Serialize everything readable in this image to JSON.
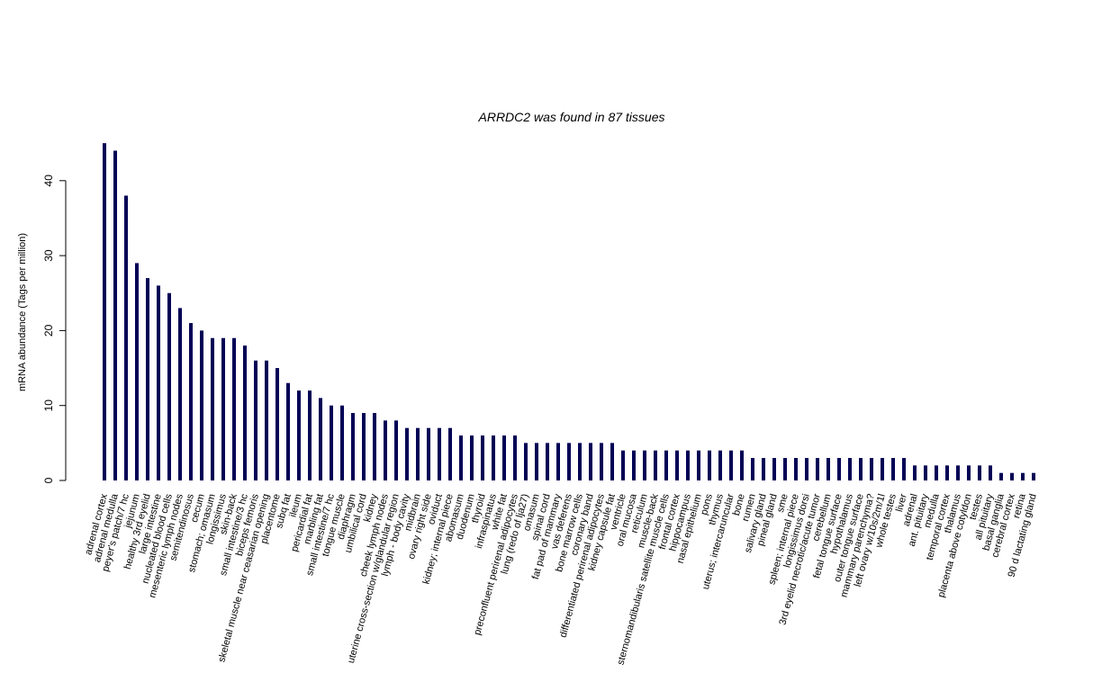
{
  "chart_data": {
    "type": "bar",
    "title": "ARRDC2  was found in  87  tissues",
    "ylabel": "mRNA abundance (Tags per million)",
    "xlabel": "",
    "ylim": [
      0,
      45
    ],
    "yticks": [
      0,
      10,
      20,
      30,
      40
    ],
    "bar_color": "#000055",
    "categories": [
      "adrenal cortex",
      "adrenal medulla",
      "peyer's patch/7 hc",
      "jejunum",
      "healthy 3rd eyelid",
      "large intestine",
      "nucleated blood cells",
      "mesenteric lymph nodes",
      "semitendinosus",
      "cecum",
      "stomach; omasum",
      "longissimus",
      "skin-back",
      "small intestine/3 hc",
      "biceps femoris",
      "skeletal muscle near ceasarian opening",
      "placentome",
      "subq fat",
      "ileum",
      "pericardial fat",
      "marbling fat",
      "small intestine/7 hc",
      "tongue muscle",
      "diaphragm",
      "umbilical cord",
      "kidney",
      "cheek lymph nodes",
      "uterine cross-section w/glandular region",
      "lymph - body cavity",
      "midbrain",
      "ovary right side",
      "oviduct",
      "kidney; internal piece",
      "abomasum",
      "duodenum",
      "thyroid",
      "infraspinatus",
      "white fat",
      "preconfluent perirenal adipocytes",
      "lung (redo of lja27)",
      "omasum",
      "spinal cord",
      "fat pad of mammary",
      "vas deferens",
      "bone marrow cells",
      "coronary band",
      "differentiated perirenal adipocytes",
      "kidney capsule fat",
      "ventricle",
      "oral mucosa",
      "reticulum",
      "muscle-back",
      "sternomandibularis satellite muscle cells",
      "frontal cortex",
      "hippocampus",
      "nasal epithelium",
      "pons",
      "thymus",
      "uterus; intercaruncular",
      "bone",
      "rumen",
      "salivary gland",
      "pineal gland",
      "sme",
      "spleen; internal piece",
      "longissimus dorsi",
      "3rd eyelid necrotic/acute tumor",
      "cerebellum",
      "fetal tongue surface",
      "hypothalamus",
      "outer tongue surface",
      "mammary parenchyma?",
      "left ovary w/10s/2m/1l",
      "whole testes",
      "liver",
      "adrenal",
      "ant. pituitary",
      "medulla",
      "temporal cortex",
      "thalamus",
      "placenta above cotyldon",
      "testes",
      "all pituitary",
      "basal ganglia",
      "cerebral cortex",
      "retina",
      "90 d lactating gland"
    ],
    "values": [
      45,
      44,
      38,
      29,
      27,
      26,
      25,
      23,
      21,
      20,
      19,
      19,
      19,
      18,
      16,
      16,
      15,
      13,
      12,
      12,
      11,
      10,
      10,
      9,
      9,
      9,
      8,
      8,
      7,
      7,
      7,
      7,
      7,
      6,
      6,
      6,
      6,
      6,
      6,
      5,
      5,
      5,
      5,
      5,
      5,
      5,
      5,
      5,
      4,
      4,
      4,
      4,
      4,
      4,
      4,
      4,
      4,
      4,
      4,
      4,
      3,
      3,
      3,
      3,
      3,
      3,
      3,
      3,
      3,
      3,
      3,
      3,
      3,
      3,
      3,
      2,
      2,
      2,
      2,
      2,
      2,
      2,
      2,
      1,
      1,
      1,
      1
    ]
  }
}
